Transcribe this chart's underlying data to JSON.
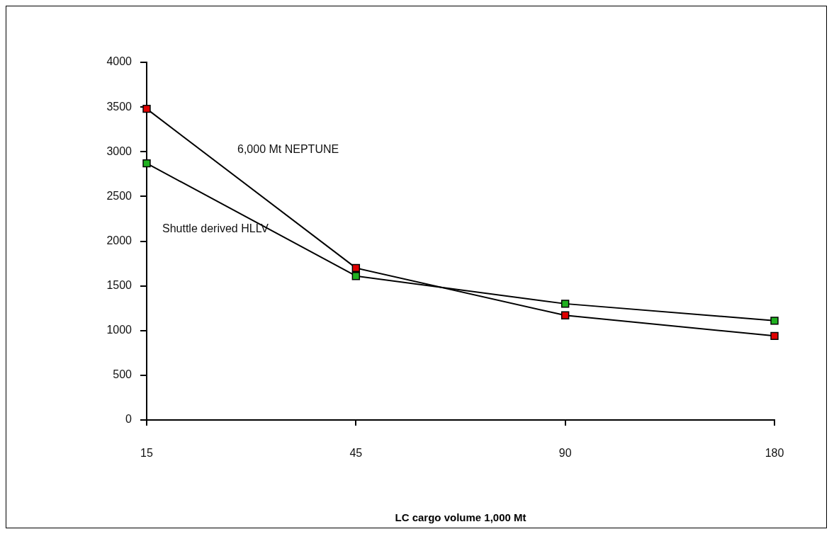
{
  "chart_data": {
    "type": "line",
    "xlabel": "LC cargo volume 1,000 Mt",
    "categories": [
      "15",
      "45",
      "90",
      "180"
    ],
    "series": [
      {
        "name": "6,000 Mt NEPTUNE",
        "color": "#e00000",
        "values": [
          3480,
          1700,
          1170,
          940
        ]
      },
      {
        "name": "Shuttle derived HLLV",
        "color": "#20b020",
        "values": [
          2870,
          1610,
          1300,
          1110
        ]
      }
    ],
    "ylim": [
      0,
      4000
    ],
    "yticks": [
      0,
      500,
      1000,
      1500,
      2000,
      2500,
      3000,
      3500,
      4000
    ],
    "grid": false,
    "legend": false,
    "marker": "square",
    "line_style": "solid"
  }
}
